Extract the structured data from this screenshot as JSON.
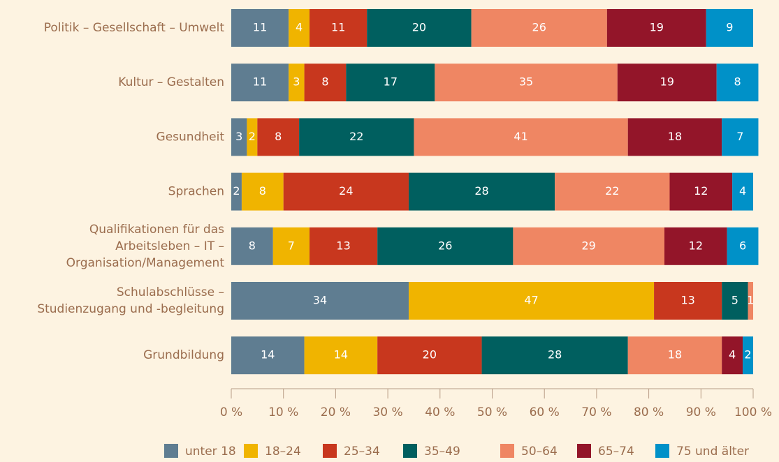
{
  "chart_data": {
    "type": "stacked-barh",
    "categories": [
      "Politik – Gesellschaft – Umwelt",
      "Kultur – Gestalten",
      "Gesundheit",
      "Sprachen",
      "Qualifikationen für das\nArbeitsleben – IT –\nOrganisation/Management",
      "Schulabschlüsse –\nStudienzugang und -begleitung",
      "Grundbildung"
    ],
    "series": [
      {
        "name": "unter 18",
        "color": "#5f7d91",
        "values": [
          11,
          11,
          3,
          2,
          8,
          34,
          14
        ]
      },
      {
        "name": "18–24",
        "color": "#f0b400",
        "values": [
          4,
          3,
          2,
          8,
          7,
          47,
          14
        ]
      },
      {
        "name": "25–34",
        "color": "#c8371e",
        "values": [
          11,
          8,
          8,
          24,
          13,
          13,
          20
        ]
      },
      {
        "name": "35–49",
        "color": "#005f5f",
        "values": [
          20,
          17,
          22,
          28,
          26,
          5,
          28
        ]
      },
      {
        "name": "50–64",
        "color": "#ef8663",
        "values": [
          26,
          35,
          41,
          22,
          29,
          1,
          18
        ]
      },
      {
        "name": "65–74",
        "color": "#931529",
        "values": [
          19,
          19,
          18,
          12,
          12,
          null,
          4
        ]
      },
      {
        "name": "75 und älter",
        "color": "#0091c8",
        "values": [
          9,
          8,
          7,
          4,
          6,
          null,
          2
        ]
      }
    ],
    "xlim": [
      0,
      100
    ],
    "xticks": [
      {
        "value": 0,
        "label": "0 %"
      },
      {
        "value": 10,
        "label": "10 %"
      },
      {
        "value": 20,
        "label": "20 %"
      },
      {
        "value": 30,
        "label": "30 %"
      },
      {
        "value": 40,
        "label": "40 %"
      },
      {
        "value": 50,
        "label": "50 %"
      },
      {
        "value": 60,
        "label": "60 %"
      },
      {
        "value": 70,
        "label": "70 %"
      },
      {
        "value": 80,
        "label": "80 %"
      },
      {
        "value": 90,
        "label": "90 %"
      },
      {
        "value": 100,
        "label": "100 %"
      }
    ],
    "legend": "bottom"
  }
}
